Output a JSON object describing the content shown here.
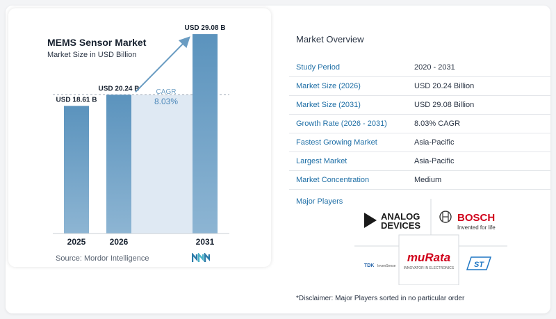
{
  "chart_data": {
    "type": "bar",
    "title": "MEMS Sensor Market",
    "subtitle": "Market Size in USD Billion",
    "categories": [
      "2025",
      "2026",
      "2031"
    ],
    "values": [
      18.61,
      20.24,
      29.08
    ],
    "value_labels": [
      "USD 18.61 B",
      "USD 20.24 B",
      "USD 29.08 B"
    ],
    "cagr_label": "CAGR",
    "cagr_value": "8.03%",
    "ylim": [
      0,
      30
    ],
    "reference_line_value": 20.24,
    "colors": {
      "bar": "#5b93bd",
      "bar_gradient_end": "#8db5d3",
      "shade": "#dfe9f3",
      "arrow": "#6a9cc2"
    }
  },
  "source_text": "Source:  Mordor Intelligence",
  "overview": {
    "title": "Market Overview",
    "rows": [
      {
        "label": "Study Period",
        "value": "2020 - 2031"
      },
      {
        "label": "Market Size (2026)",
        "value": "USD 20.24 Billion"
      },
      {
        "label": "Market Size (2031)",
        "value": "USD 29.08 Billion"
      },
      {
        "label": "Growth Rate (2026 - 2031)",
        "value": "8.03% CAGR"
      },
      {
        "label": "Fastest Growing Market",
        "value": "Asia-Pacific"
      },
      {
        "label": "Largest Market",
        "value": "Asia-Pacific"
      },
      {
        "label": "Market Concentration",
        "value": "Medium"
      }
    ]
  },
  "players": {
    "title": "Major Players",
    "analog_line1": "ANALOG",
    "analog_line2": "DEVICES",
    "bosch_name": "BOSCH",
    "bosch_tagline": "Invented for life",
    "murata_name": "muRata",
    "murata_tagline": "INNOVATOR IN ELECTRONICS",
    "tdk_name": "TDK",
    "tdk_tagline": "InvenSense",
    "st_name": "ST"
  },
  "disclaimer": "*Disclaimer: Major Players sorted in no particular order"
}
